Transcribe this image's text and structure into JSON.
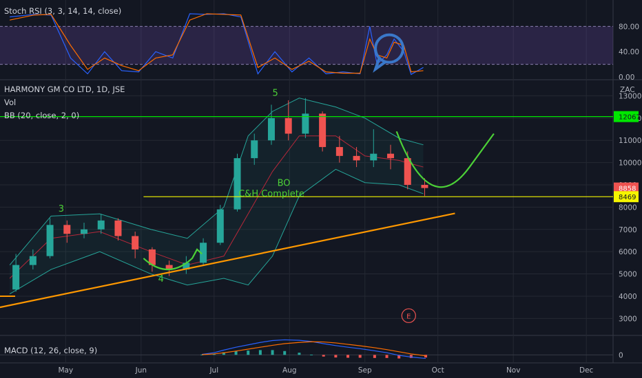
{
  "symbol_header": "HARMONY GM CO LTD, 1D, JSE",
  "legend": {
    "stoch": "Stoch RSI (3, 3, 14, 14, close)",
    "vol": "Vol",
    "bb": "BB (20, close, 2, 0)",
    "macd": "MACD (12, 26, close, 9)"
  },
  "currency": "ZAC",
  "colors": {
    "background": "#131722",
    "grid": "#242833",
    "up_candle": "#26a69a",
    "down_candle": "#ef5350",
    "bb_band": "#26a69a",
    "bb_basis": "#b7283a",
    "trendline": "#ff9800",
    "resistance": "#00e600",
    "support": "#f5f500",
    "annotation": "#4cd137",
    "stoch_k": "#2962ff",
    "stoch_d": "#ff6d00",
    "stoch_band": "#7e57c2",
    "price_tag": "#ef5350"
  },
  "chart_data": [
    {
      "panel": "stoch_rsi",
      "type": "line",
      "title": "Stoch RSI (3, 3, 14, 14, close)",
      "ylim": [
        0,
        100
      ],
      "y_ticks": [
        "80.00",
        "40.00",
        "0.00"
      ],
      "band": [
        20,
        80
      ],
      "series": [
        {
          "name": "K",
          "x": [
            "2019-04-08",
            "2019-04-18",
            "2019-04-25",
            "2019-05-03",
            "2019-05-10",
            "2019-05-17",
            "2019-05-24",
            "2019-05-31",
            "2019-06-07",
            "2019-06-14",
            "2019-06-21",
            "2019-06-28",
            "2019-07-05",
            "2019-07-12",
            "2019-07-19",
            "2019-07-26",
            "2019-08-02",
            "2019-08-09",
            "2019-08-16",
            "2019-08-23",
            "2019-08-30",
            "2019-09-03",
            "2019-09-06",
            "2019-09-10",
            "2019-09-13",
            "2019-09-17",
            "2019-09-20",
            "2019-09-25"
          ],
          "values": [
            95,
            99,
            98,
            30,
            5,
            40,
            10,
            8,
            40,
            30,
            100,
            99,
            100,
            95,
            5,
            40,
            8,
            30,
            5,
            8,
            5,
            80,
            20,
            35,
            60,
            40,
            4,
            15
          ]
        },
        {
          "name": "D",
          "x": [
            "2019-04-08",
            "2019-04-18",
            "2019-04-25",
            "2019-05-03",
            "2019-05-10",
            "2019-05-17",
            "2019-05-24",
            "2019-05-31",
            "2019-06-07",
            "2019-06-14",
            "2019-06-21",
            "2019-06-28",
            "2019-07-05",
            "2019-07-12",
            "2019-07-19",
            "2019-07-26",
            "2019-08-02",
            "2019-08-09",
            "2019-08-16",
            "2019-08-23",
            "2019-08-30",
            "2019-09-03",
            "2019-09-06",
            "2019-09-10",
            "2019-09-13",
            "2019-09-17",
            "2019-09-20",
            "2019-09-25"
          ],
          "values": [
            90,
            98,
            99,
            50,
            12,
            30,
            18,
            10,
            30,
            35,
            90,
            100,
            99,
            98,
            15,
            30,
            12,
            25,
            8,
            6,
            6,
            60,
            35,
            30,
            55,
            50,
            8,
            10
          ]
        }
      ]
    },
    {
      "panel": "price",
      "type": "candlestick",
      "title": "HARMONY GM CO LTD, 1D, JSE",
      "ylim": [
        2300,
        13600
      ],
      "y_ticks": [
        3000,
        4000,
        5000,
        6000,
        7000,
        8000,
        9000,
        10000,
        11000,
        12000,
        13000
      ],
      "x_ticks": [
        "May",
        "Jun",
        "Jul",
        "Aug",
        "Sep",
        "Oct",
        "Nov",
        "Dec"
      ],
      "x_range": [
        "2019-04-04",
        "2019-12-12"
      ],
      "candles_weekly": [
        {
          "date": "2019-04-08",
          "open": 4300,
          "close": 5400,
          "high": 5900,
          "low": 4200
        },
        {
          "date": "2019-04-15",
          "open": 5400,
          "close": 5800,
          "high": 6100,
          "low": 5200
        },
        {
          "date": "2019-04-22",
          "open": 5800,
          "close": 7200,
          "high": 7500,
          "low": 5700
        },
        {
          "date": "2019-04-29",
          "open": 7200,
          "close": 6800,
          "high": 7400,
          "low": 6400
        },
        {
          "date": "2019-05-06",
          "open": 6800,
          "close": 7000,
          "high": 7300,
          "low": 6600
        },
        {
          "date": "2019-05-13",
          "open": 7000,
          "close": 7400,
          "high": 7700,
          "low": 6800
        },
        {
          "date": "2019-05-20",
          "open": 7400,
          "close": 6700,
          "high": 7500,
          "low": 6500
        },
        {
          "date": "2019-05-27",
          "open": 6700,
          "close": 6100,
          "high": 6900,
          "low": 5700
        },
        {
          "date": "2019-06-03",
          "open": 6100,
          "close": 5400,
          "high": 6200,
          "low": 5100
        },
        {
          "date": "2019-06-10",
          "open": 5400,
          "close": 5200,
          "high": 5600,
          "low": 4900
        },
        {
          "date": "2019-06-17",
          "open": 5200,
          "close": 5500,
          "high": 5800,
          "low": 5000
        },
        {
          "date": "2019-06-24",
          "open": 5500,
          "close": 6400,
          "high": 6600,
          "low": 5400
        },
        {
          "date": "2019-07-01",
          "open": 6400,
          "close": 7900,
          "high": 8100,
          "low": 6300
        },
        {
          "date": "2019-07-08",
          "open": 7900,
          "close": 10200,
          "high": 10400,
          "low": 7800
        },
        {
          "date": "2019-07-15",
          "open": 10200,
          "close": 11000,
          "high": 11300,
          "low": 9900
        },
        {
          "date": "2019-07-22",
          "open": 11000,
          "close": 12000,
          "high": 12600,
          "low": 10800
        },
        {
          "date": "2019-07-29",
          "open": 12000,
          "close": 11300,
          "high": 12800,
          "low": 11000
        },
        {
          "date": "2019-08-05",
          "open": 11300,
          "close": 12200,
          "high": 12900,
          "low": 11100
        },
        {
          "date": "2019-08-12",
          "open": 12200,
          "close": 10700,
          "high": 12300,
          "low": 10500
        },
        {
          "date": "2019-08-19",
          "open": 10700,
          "close": 10300,
          "high": 11200,
          "low": 10000
        },
        {
          "date": "2019-08-26",
          "open": 10300,
          "close": 10100,
          "high": 10700,
          "low": 9800
        },
        {
          "date": "2019-09-02",
          "open": 10100,
          "close": 10400,
          "high": 11500,
          "low": 9800
        },
        {
          "date": "2019-09-09",
          "open": 10400,
          "close": 10200,
          "high": 10800,
          "low": 9700
        },
        {
          "date": "2019-09-16",
          "open": 10200,
          "close": 9000,
          "high": 10500,
          "low": 8800
        },
        {
          "date": "2019-09-23",
          "open": 9000,
          "close": 8858,
          "high": 9300,
          "low": 8500
        }
      ],
      "bollinger": {
        "x": [
          "2019-04-08",
          "2019-04-25",
          "2019-05-15",
          "2019-06-05",
          "2019-06-20",
          "2019-07-05",
          "2019-07-15",
          "2019-07-25",
          "2019-08-05",
          "2019-08-20",
          "2019-09-01",
          "2019-09-15",
          "2019-09-25"
        ],
        "upper": [
          5400,
          7600,
          7700,
          7000,
          6600,
          8000,
          11200,
          12300,
          12900,
          12500,
          12000,
          11100,
          10800
        ],
        "basis": [
          4800,
          6600,
          6900,
          6000,
          5400,
          5800,
          7700,
          9600,
          11200,
          11200,
          10300,
          10100,
          9800
        ],
        "lower": [
          4100,
          5200,
          6000,
          5000,
          4500,
          4800,
          4500,
          5800,
          8500,
          9700,
          9100,
          9000,
          8600
        ]
      },
      "horizontal_lines": [
        {
          "label": "12067",
          "value": 12067,
          "color": "#00e600"
        },
        {
          "label": "8469",
          "value": 8469,
          "color": "#f5f500"
        }
      ],
      "price_tags": [
        {
          "label": "8858",
          "value": 8858
        },
        {
          "label": "12067",
          "value": 12067
        },
        {
          "label": "8469",
          "value": 8469
        }
      ],
      "trendline": {
        "from": {
          "x": "2019-04-04",
          "y": 3500
        },
        "to": {
          "x": "2019-10-08",
          "y": 7720
        }
      },
      "annotations": [
        {
          "text": "5",
          "x": "2019-07-25",
          "y": 13000
        },
        {
          "text": "3",
          "x": "2019-04-28",
          "y": 7800
        },
        {
          "text": "4",
          "x": "2019-06-08",
          "y": 4650
        },
        {
          "text": "BO",
          "x": "2019-07-27",
          "y": 8950
        },
        {
          "text": "C&H Complete",
          "x": "2019-07-11",
          "y": 8469
        }
      ],
      "earnings_marker": {
        "text": "E",
        "x": "2019-09-19",
        "y": 3000
      }
    },
    {
      "panel": "macd",
      "type": "histogram",
      "title": "MACD (12, 26, close, 9)",
      "y_ticks": [
        "0"
      ],
      "ylim": [
        -220,
        700
      ],
      "x": [
        "2019-06-26",
        "2019-07-01",
        "2019-07-05",
        "2019-07-10",
        "2019-07-15",
        "2019-07-20",
        "2019-07-25",
        "2019-07-30",
        "2019-08-05",
        "2019-08-10",
        "2019-08-15",
        "2019-08-20",
        "2019-08-25",
        "2019-08-30",
        "2019-09-05",
        "2019-09-10",
        "2019-09-15",
        "2019-09-20",
        "2019-09-26"
      ],
      "series": [
        {
          "name": "macd",
          "values": [
            20,
            90,
            200,
            320,
            420,
            520,
            600,
            630,
            610,
            560,
            470,
            390,
            320,
            260,
            170,
            90,
            -20,
            -90,
            -150
          ]
        },
        {
          "name": "signal",
          "values": [
            10,
            40,
            90,
            160,
            240,
            320,
            400,
            470,
            520,
            550,
            540,
            500,
            440,
            380,
            300,
            220,
            130,
            40,
            -40
          ]
        }
      ]
    }
  ]
}
